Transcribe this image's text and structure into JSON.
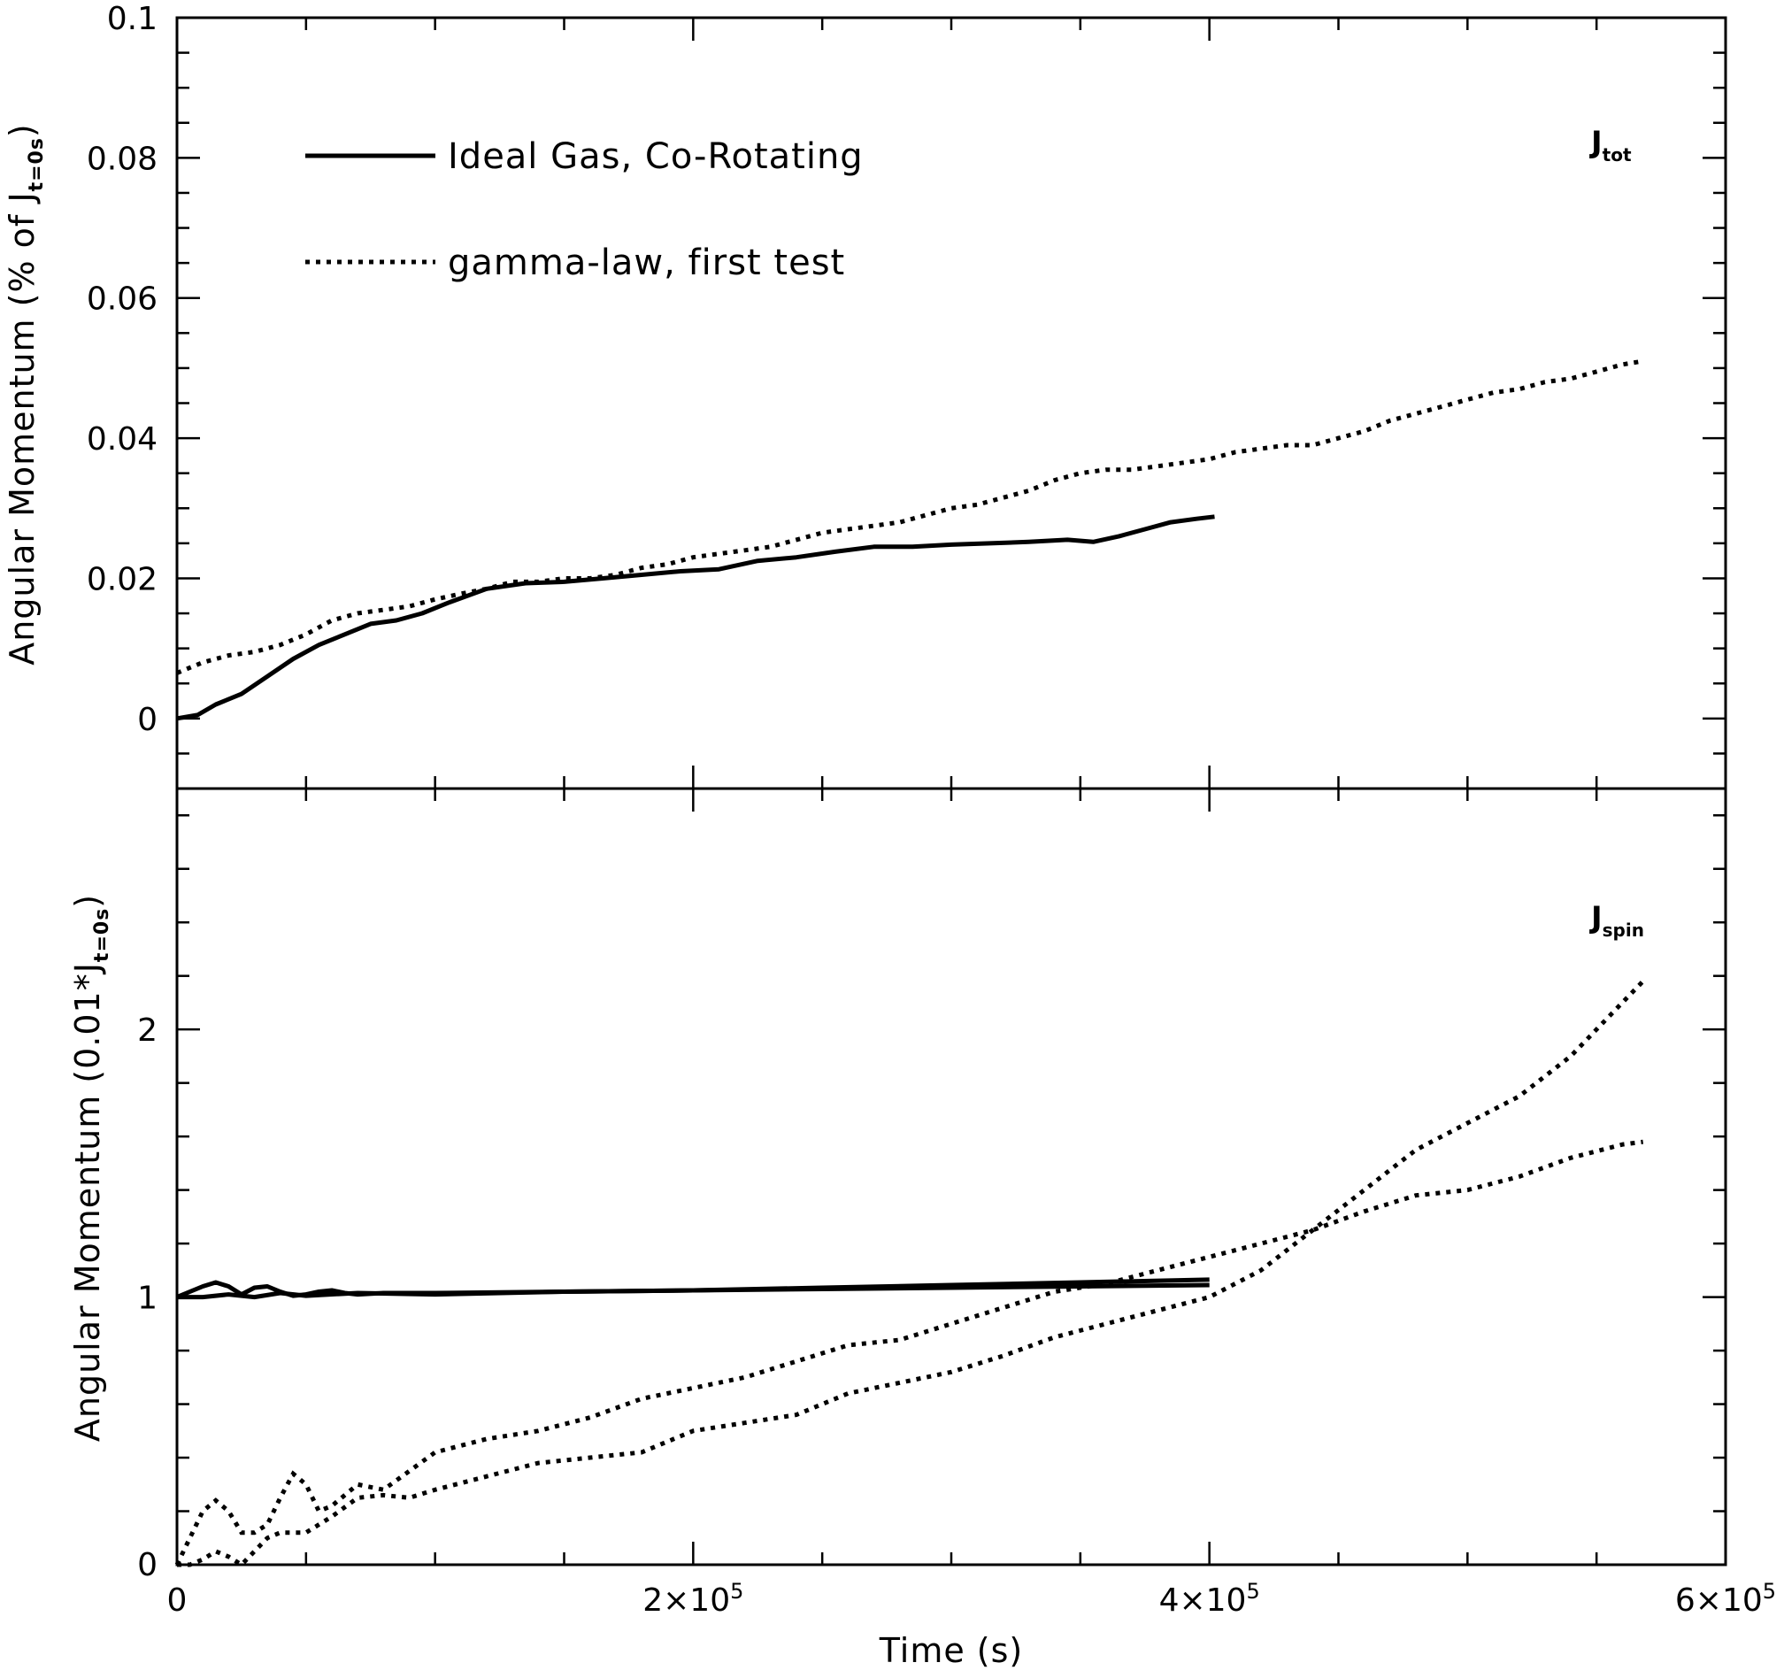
{
  "chart_data": [
    {
      "type": "line",
      "panel": "top",
      "tag": {
        "main": "J",
        "sub": "tot"
      },
      "ylabel": {
        "main": "Angular Momentum (% of J",
        "sub": "t=0s",
        "end": ")"
      },
      "xlim": [
        0,
        600000
      ],
      "ylim": [
        -0.01,
        0.1
      ],
      "y_ticks": [
        {
          "value": 0,
          "label": "0"
        },
        {
          "value": 0.02,
          "label": "0.02"
        },
        {
          "value": 0.04,
          "label": "0.04"
        },
        {
          "value": 0.06,
          "label": "0.06"
        },
        {
          "value": 0.08,
          "label": "0.08"
        },
        {
          "value": 0.1,
          "label": "0.1"
        }
      ],
      "legend": [
        {
          "label": "Ideal Gas, Co-Rotating",
          "style": "solid"
        },
        {
          "label": "gamma-law, first test",
          "style": "dotted"
        }
      ],
      "series": [
        {
          "name": "Ideal Gas, Co-Rotating",
          "style": "solid",
          "x": [
            0,
            8000,
            15000,
            25000,
            35000,
            45000,
            55000,
            65000,
            75000,
            85000,
            95000,
            105000,
            120000,
            135000,
            150000,
            165000,
            180000,
            195000,
            210000,
            225000,
            240000,
            255000,
            270000,
            285000,
            300000,
            315000,
            330000,
            345000,
            355000,
            365000,
            375000,
            385000,
            395000,
            402000
          ],
          "y": [
            0,
            0.0005,
            0.002,
            0.0035,
            0.006,
            0.0085,
            0.0105,
            0.012,
            0.0135,
            0.014,
            0.015,
            0.0165,
            0.0185,
            0.0193,
            0.0195,
            0.02,
            0.0205,
            0.021,
            0.0213,
            0.0225,
            0.023,
            0.0238,
            0.0245,
            0.0245,
            0.0248,
            0.025,
            0.0252,
            0.0255,
            0.0252,
            0.026,
            0.027,
            0.028,
            0.0285,
            0.0288
          ]
        },
        {
          "name": "gamma-law, first test",
          "style": "dotted",
          "x": [
            0,
            10000,
            20000,
            30000,
            40000,
            50000,
            60000,
            70000,
            80000,
            90000,
            100000,
            110000,
            120000,
            130000,
            140000,
            150000,
            160000,
            170000,
            180000,
            190000,
            200000,
            210000,
            220000,
            230000,
            240000,
            250000,
            260000,
            270000,
            280000,
            290000,
            300000,
            310000,
            320000,
            330000,
            340000,
            350000,
            360000,
            370000,
            380000,
            390000,
            400000,
            410000,
            420000,
            430000,
            440000,
            450000,
            460000,
            470000,
            480000,
            490000,
            500000,
            510000,
            520000,
            530000,
            540000,
            550000,
            560000,
            568000
          ],
          "y": [
            0.0065,
            0.008,
            0.009,
            0.0095,
            0.0105,
            0.012,
            0.014,
            0.015,
            0.0155,
            0.016,
            0.017,
            0.0178,
            0.0185,
            0.0195,
            0.0195,
            0.02,
            0.02,
            0.0205,
            0.0215,
            0.022,
            0.023,
            0.0235,
            0.024,
            0.0245,
            0.0255,
            0.0265,
            0.027,
            0.0275,
            0.028,
            0.029,
            0.03,
            0.0305,
            0.0315,
            0.0325,
            0.034,
            0.035,
            0.0355,
            0.0355,
            0.036,
            0.0365,
            0.037,
            0.038,
            0.0385,
            0.039,
            0.039,
            0.04,
            0.041,
            0.0425,
            0.0435,
            0.0445,
            0.0455,
            0.0465,
            0.047,
            0.048,
            0.0485,
            0.0495,
            0.0505,
            0.051
          ]
        }
      ]
    },
    {
      "type": "line",
      "panel": "bottom",
      "tag": {
        "main": "J",
        "sub": "spin"
      },
      "ylabel": {
        "main": "Angular Momentum (0.01*J",
        "sub": "t=0s",
        "end": ")"
      },
      "xlabel": "Time (s)",
      "xlim": [
        0,
        600000
      ],
      "ylim": [
        0,
        2.9
      ],
      "x_ticks": [
        {
          "value": 0,
          "base": "0",
          "exp": ""
        },
        {
          "value": 200000,
          "base": "2×10",
          "exp": "5"
        },
        {
          "value": 400000,
          "base": "4×10",
          "exp": "5"
        },
        {
          "value": 600000,
          "base": "6×10",
          "exp": "5"
        }
      ],
      "y_ticks": [
        {
          "value": 0,
          "label": "0"
        },
        {
          "value": 1,
          "label": "1"
        },
        {
          "value": 2,
          "label": "2"
        }
      ],
      "series": [
        {
          "style": "solid",
          "x": [
            0,
            5000,
            10000,
            15000,
            20000,
            25000,
            30000,
            35000,
            40000,
            45000,
            50000,
            55000,
            60000,
            65000,
            70000,
            80000,
            100000,
            150000,
            200000,
            250000,
            300000,
            350000,
            400000
          ],
          "y": [
            1.0,
            1.02,
            1.04,
            1.055,
            1.04,
            1.01,
            1.035,
            1.04,
            1.02,
            1.005,
            1.01,
            1.02,
            1.025,
            1.015,
            1.01,
            1.015,
            1.015,
            1.02,
            1.025,
            1.03,
            1.035,
            1.04,
            1.045
          ]
        },
        {
          "style": "solid",
          "x": [
            0,
            10000,
            20000,
            30000,
            40000,
            50000,
            70000,
            100000,
            150000,
            200000,
            250000,
            300000,
            350000,
            400000
          ],
          "y": [
            1.0,
            1.0,
            1.01,
            1.0,
            1.015,
            1.005,
            1.015,
            1.01,
            1.02,
            1.025,
            1.035,
            1.045,
            1.055,
            1.065
          ]
        },
        {
          "style": "dotted",
          "x": [
            0,
            5000,
            10000,
            15000,
            20000,
            25000,
            30000,
            35000,
            40000,
            45000,
            50000,
            55000,
            60000,
            70000,
            80000,
            90000,
            100000,
            120000,
            140000,
            160000,
            180000,
            200000,
            220000,
            240000,
            260000,
            280000,
            300000,
            320000,
            340000,
            360000,
            380000,
            400000,
            420000,
            440000,
            460000,
            480000,
            500000,
            520000,
            540000,
            560000,
            568000
          ],
          "y": [
            0.0,
            0.1,
            0.2,
            0.24,
            0.2,
            0.12,
            0.12,
            0.15,
            0.25,
            0.34,
            0.3,
            0.2,
            0.22,
            0.3,
            0.28,
            0.35,
            0.42,
            0.47,
            0.5,
            0.55,
            0.62,
            0.66,
            0.7,
            0.76,
            0.82,
            0.84,
            0.9,
            0.96,
            1.02,
            1.05,
            1.1,
            1.15,
            1.2,
            1.25,
            1.32,
            1.38,
            1.4,
            1.45,
            1.52,
            1.57,
            1.58
          ]
        },
        {
          "style": "dotted",
          "x": [
            0,
            5000,
            10000,
            15000,
            20000,
            25000,
            30000,
            35000,
            40000,
            50000,
            60000,
            70000,
            80000,
            90000,
            100000,
            120000,
            140000,
            160000,
            180000,
            200000,
            220000,
            240000,
            260000,
            280000,
            300000,
            320000,
            340000,
            360000,
            380000,
            400000,
            420000,
            440000,
            460000,
            480000,
            500000,
            520000,
            540000,
            560000,
            568000
          ],
          "y": [
            0.0,
            0.0,
            0.02,
            0.05,
            0.03,
            0.0,
            0.05,
            0.1,
            0.12,
            0.12,
            0.18,
            0.25,
            0.26,
            0.25,
            0.28,
            0.33,
            0.38,
            0.4,
            0.42,
            0.5,
            0.53,
            0.56,
            0.64,
            0.68,
            0.72,
            0.78,
            0.85,
            0.9,
            0.95,
            1.0,
            1.1,
            1.25,
            1.4,
            1.55,
            1.65,
            1.75,
            1.9,
            2.1,
            2.18
          ]
        }
      ]
    }
  ]
}
